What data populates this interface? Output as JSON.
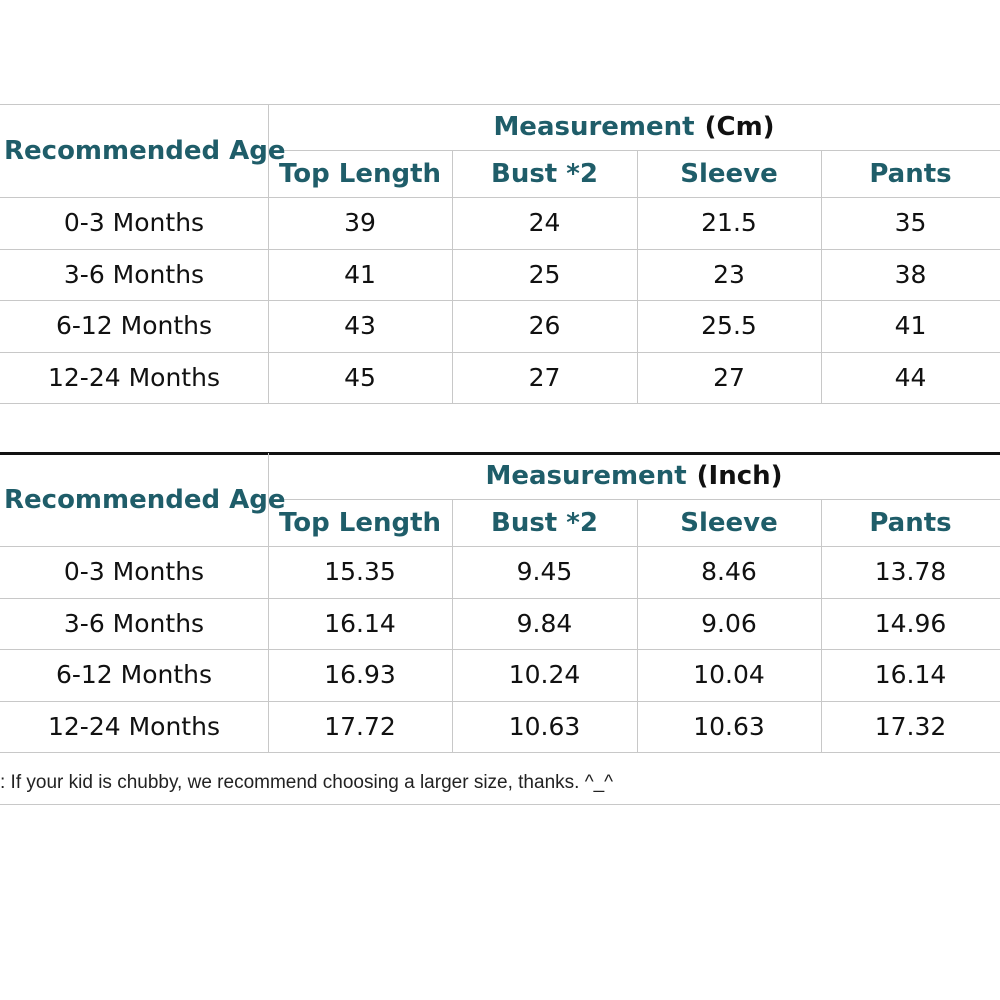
{
  "tables": [
    {
      "age_header": "Recommended Age",
      "measurement": "Measurement",
      "unit": "(Cm)",
      "columns": [
        "Top Length",
        "Bust *2",
        "Sleeve",
        "Pants"
      ],
      "rows": [
        [
          "0-3 Months",
          "39",
          "24",
          "21.5",
          "35"
        ],
        [
          "3-6 Months",
          "41",
          "25",
          "23",
          "38"
        ],
        [
          "6-12 Months",
          "43",
          "26",
          "25.5",
          "41"
        ],
        [
          "12-24 Months",
          "45",
          "27",
          "27",
          "44"
        ]
      ]
    },
    {
      "age_header": "Recommended Age",
      "measurement": "Measurement",
      "unit": "(Inch)",
      "columns": [
        "Top Length",
        "Bust *2",
        "Sleeve",
        "Pants"
      ],
      "rows": [
        [
          "0-3 Months",
          "15.35",
          "9.45",
          "8.46",
          "13.78"
        ],
        [
          "3-6 Months",
          "16.14",
          "9.84",
          "9.06",
          "14.96"
        ],
        [
          "6-12 Months",
          "16.93",
          "10.24",
          "10.04",
          "16.14"
        ],
        [
          "12-24 Months",
          "17.72",
          "10.63",
          "10.63",
          "17.32"
        ]
      ]
    }
  ],
  "note": ": If your kid is chubby, we recommend choosing a larger size, thanks. ^_^"
}
